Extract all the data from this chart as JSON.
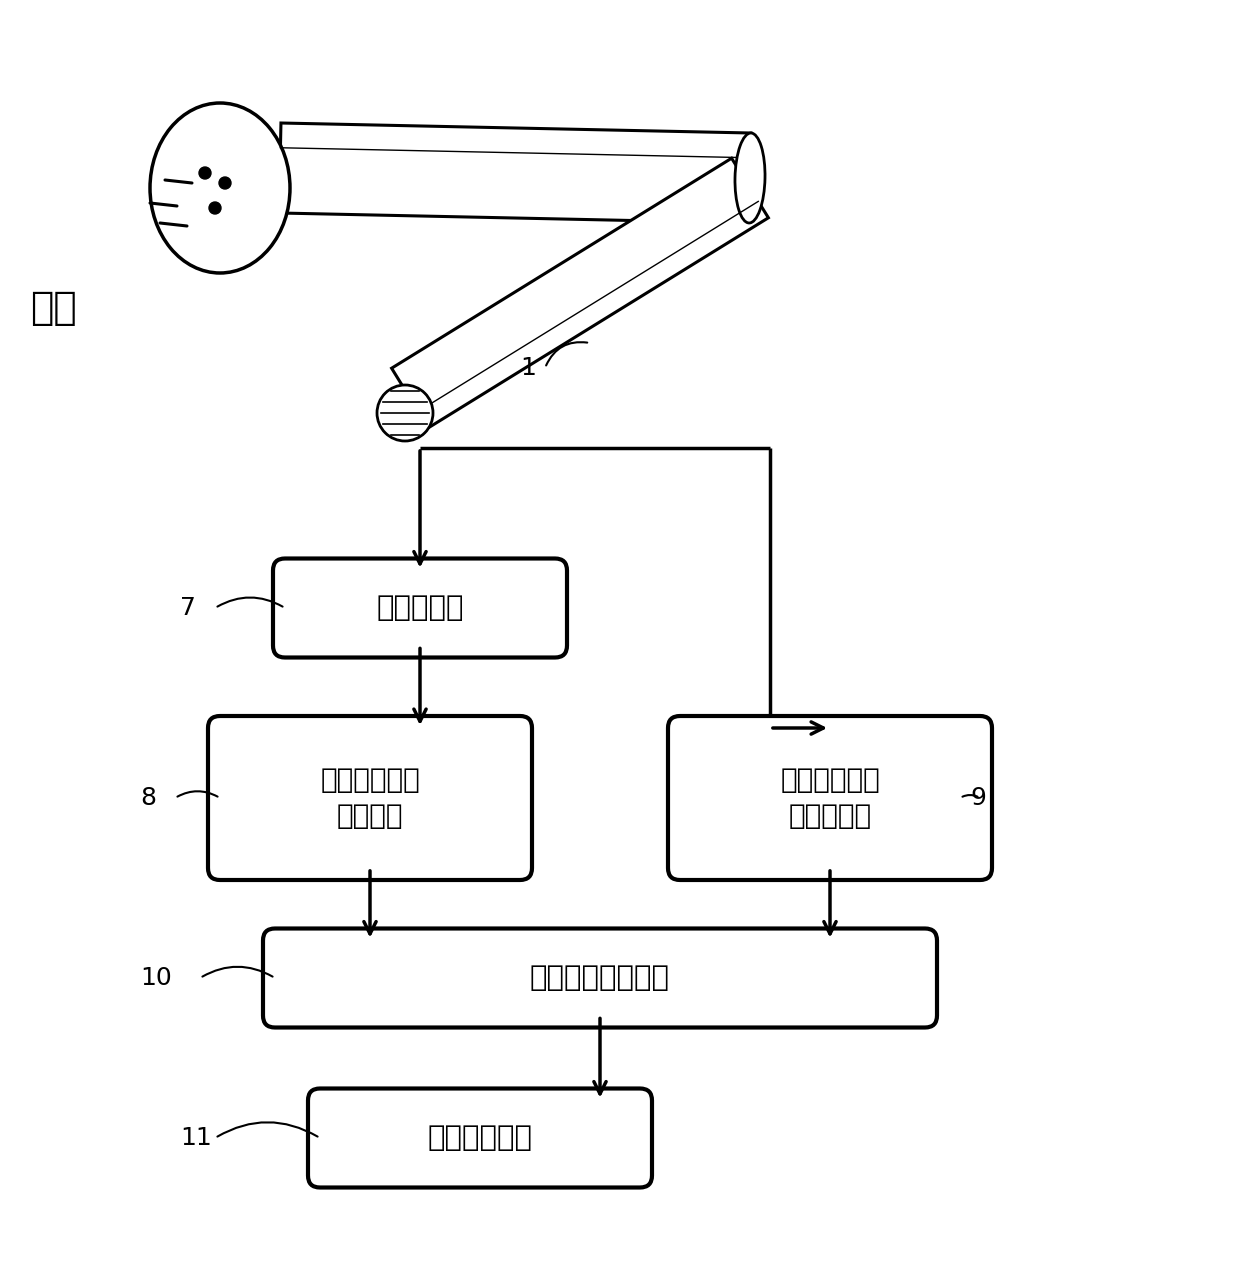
{
  "bg_color": "#ffffff",
  "line_color": "#000000",
  "box_fill": "#ffffff",
  "box_edge": "#000000",
  "text_color": "#000000",
  "wind_label": "风向",
  "label_1": "1",
  "label_7": "7",
  "label_8": "8",
  "label_9": "9",
  "label_10": "10",
  "label_11": "11",
  "box7_text": "压力变送器",
  "box8_text": "五孔探针数据\n处理单元",
  "box9_text": "惯性传感器数\n据处理单元",
  "box10_text": "数据耦合处理单元",
  "box11_text": "数据记录单元",
  "figsize": [
    12.4,
    12.78
  ],
  "dpi": 100
}
